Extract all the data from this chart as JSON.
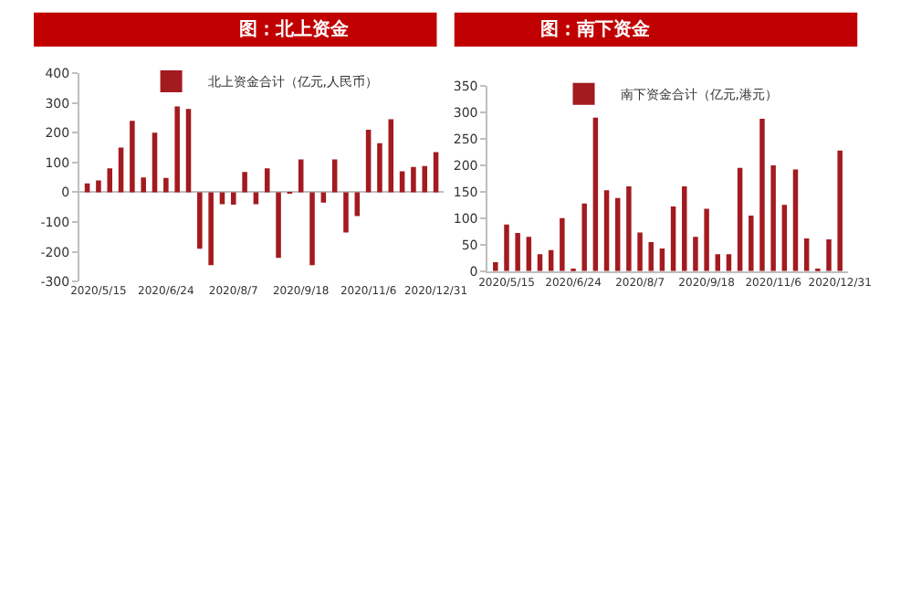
{
  "chart_data": [
    {
      "type": "bar",
      "title": "图：北上资金",
      "legend": "top",
      "ylim": [
        -300,
        400
      ],
      "yticks": [
        -300,
        -200,
        -100,
        0,
        100,
        200,
        300,
        400
      ],
      "categories": [
        null,
        "2020/5/15",
        null,
        null,
        null,
        null,
        null,
        "2020/6/24",
        null,
        null,
        null,
        null,
        null,
        "2020/8/7",
        null,
        null,
        null,
        null,
        null,
        "2020/9/18",
        null,
        null,
        null,
        null,
        null,
        "2020/11/6",
        null,
        null,
        null,
        null,
        null,
        "2020/12/31"
      ],
      "series": [
        {
          "name": "北上资金合计（亿元,人民币）",
          "color": "#a31a1f",
          "values": [
            30,
            40,
            80,
            150,
            240,
            50,
            200,
            48,
            288,
            280,
            -190,
            -245,
            -40,
            -42,
            68,
            -40,
            80,
            -220,
            -5,
            110,
            -245,
            -35,
            110,
            -135,
            -80,
            210,
            165,
            245,
            70,
            85,
            88,
            135
          ]
        }
      ]
    },
    {
      "type": "bar",
      "title": "图：南下资金",
      "legend": "top",
      "ylim": [
        0,
        350
      ],
      "yticks": [
        0,
        50,
        100,
        150,
        200,
        250,
        300,
        350
      ],
      "categories": [
        null,
        "2020/5/15",
        null,
        null,
        null,
        null,
        null,
        "2020/6/24",
        null,
        null,
        null,
        null,
        null,
        "2020/8/7",
        null,
        null,
        null,
        null,
        null,
        "2020/9/18",
        null,
        null,
        null,
        null,
        null,
        "2020/11/6",
        null,
        null,
        null,
        null,
        null,
        "2020/12/31"
      ],
      "series": [
        {
          "name": "南下资金合计（亿元,港元）",
          "color": "#a31a1f",
          "values": [
            17,
            88,
            72,
            65,
            32,
            40,
            100,
            5,
            128,
            290,
            153,
            138,
            160,
            73,
            55,
            43,
            122,
            160,
            65,
            118,
            32,
            32,
            195,
            105,
            288,
            200,
            125,
            192,
            62,
            2,
            60,
            228
          ]
        }
      ]
    }
  ]
}
